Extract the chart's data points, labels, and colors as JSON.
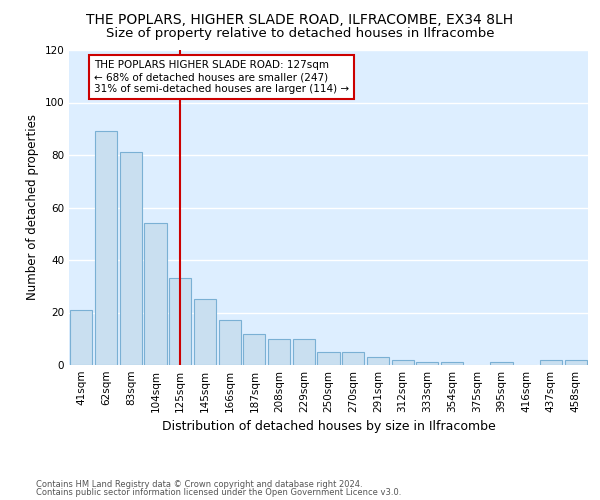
{
  "title": "THE POPLARS, HIGHER SLADE ROAD, ILFRACOMBE, EX34 8LH",
  "subtitle": "Size of property relative to detached houses in Ilfracombe",
  "xlabel": "Distribution of detached houses by size in Ilfracombe",
  "ylabel": "Number of detached properties",
  "categories": [
    "41sqm",
    "62sqm",
    "83sqm",
    "104sqm",
    "125sqm",
    "145sqm",
    "166sqm",
    "187sqm",
    "208sqm",
    "229sqm",
    "250sqm",
    "270sqm",
    "291sqm",
    "312sqm",
    "333sqm",
    "354sqm",
    "375sqm",
    "395sqm",
    "416sqm",
    "437sqm",
    "458sqm"
  ],
  "values": [
    21,
    89,
    81,
    54,
    33,
    25,
    17,
    12,
    10,
    10,
    5,
    5,
    3,
    2,
    1,
    1,
    0,
    1,
    0,
    2,
    2
  ],
  "bar_color": "#c9dff0",
  "bar_edge_color": "#7ab0d4",
  "vline_x": 4,
  "vline_color": "#cc0000",
  "annotation_text": "THE POPLARS HIGHER SLADE ROAD: 127sqm\n← 68% of detached houses are smaller (247)\n31% of semi-detached houses are larger (114) →",
  "annotation_box_facecolor": "#ffffff",
  "annotation_box_edgecolor": "#cc0000",
  "ylim": [
    0,
    120
  ],
  "yticks": [
    0,
    20,
    40,
    60,
    80,
    100,
    120
  ],
  "footer1": "Contains HM Land Registry data © Crown copyright and database right 2024.",
  "footer2": "Contains public sector information licensed under the Open Government Licence v3.0.",
  "fig_facecolor": "#ffffff",
  "plot_facecolor": "#ddeeff",
  "grid_color": "#ffffff",
  "title_fontsize": 10,
  "subtitle_fontsize": 9.5,
  "tick_fontsize": 7.5,
  "ylabel_fontsize": 8.5,
  "xlabel_fontsize": 9,
  "annotation_fontsize": 7.5,
  "footer_fontsize": 6.0
}
